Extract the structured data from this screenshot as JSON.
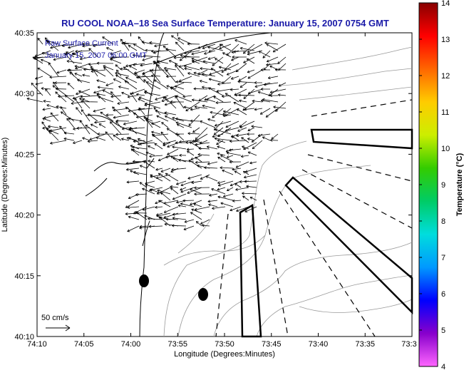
{
  "title": "RU COOL  NOAA–18  Sea Surface Temperature:  January 15, 2007 0754 GMT",
  "inset": {
    "line1": "Raw Surface Current",
    "line2": "January 15, 2007 06:00 GMT"
  },
  "scale_label": "50 cm/s",
  "colors": {
    "title": "#1a1aa8",
    "land_line": "#000000",
    "bathymetry": "#9a9a9a",
    "vectors": "#000000"
  },
  "chart_data": {
    "type": "map",
    "xlabel": "Longitude (Degrees:Minutes)",
    "ylabel": "Latitude (Degrees:Minutes)",
    "x_ticks": [
      "74:10",
      "74:05",
      "74:00",
      "73:55",
      "73:50",
      "73:45",
      "73:40",
      "73:35",
      "73:3"
    ],
    "y_ticks": [
      "40:10",
      "40:15",
      "40:20",
      "40:25",
      "40:30",
      "40:35"
    ],
    "xlim_minutes_west": [
      10,
      -30
    ],
    "ylim_minutes": [
      10,
      35
    ],
    "colorbar": {
      "label": "Temperature (°C)",
      "ticks": [
        "4",
        "5",
        "6",
        "7",
        "8",
        "9",
        "10",
        "11",
        "12",
        "13",
        "14"
      ],
      "range": [
        4,
        14
      ],
      "colors": [
        "#ff66ff",
        "#8800cc",
        "#0000ff",
        "#0099ff",
        "#00dddd",
        "#00cc66",
        "#33cc00",
        "#ccee00",
        "#ffcc00",
        "#ff6600",
        "#ff0000",
        "#880000"
      ]
    },
    "scale_vector_cm_s": 50
  }
}
